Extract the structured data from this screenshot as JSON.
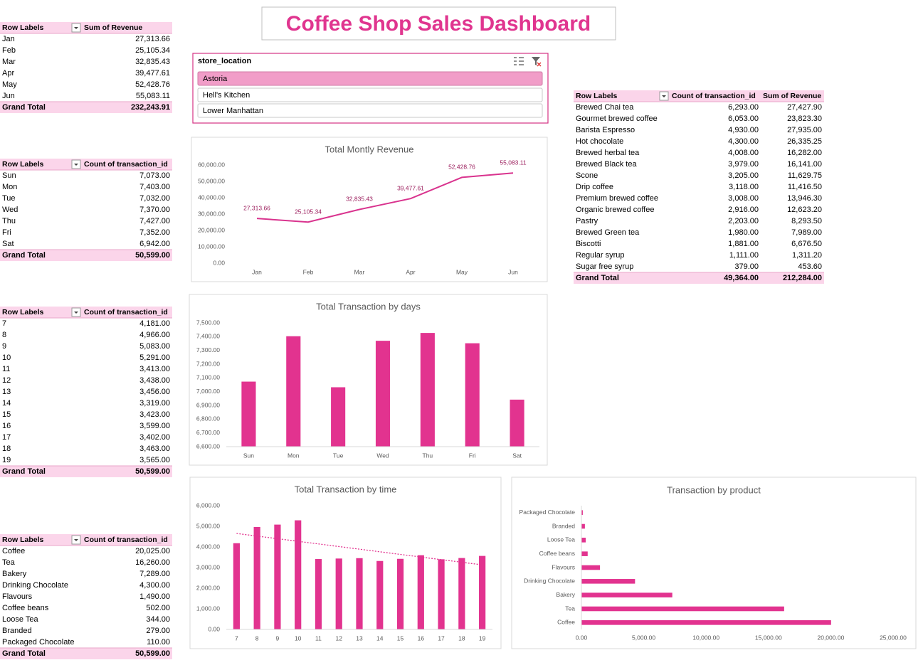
{
  "title": "Coffee Shop Sales Dashboard",
  "slicer": {
    "header": "store_location",
    "items": [
      "Astoria",
      "Hell's Kitchen",
      "Lower Manhattan"
    ],
    "selected": "Astoria"
  },
  "tables": [
    {
      "header": [
        "Row Labels",
        "Sum of Revenue"
      ],
      "rows": [
        [
          "Jan",
          "27,313.66"
        ],
        [
          "Feb",
          "25,105.34"
        ],
        [
          "Mar",
          "32,835.43"
        ],
        [
          "Apr",
          "39,477.61"
        ],
        [
          "May",
          "52,428.76"
        ],
        [
          "Jun",
          "55,083.11"
        ]
      ],
      "total": [
        "Grand Total",
        "232,243.91"
      ]
    },
    {
      "header": [
        "Row Labels",
        "Count of transaction_id"
      ],
      "rows": [
        [
          "Sun",
          "7,073.00"
        ],
        [
          "Mon",
          "7,403.00"
        ],
        [
          "Tue",
          "7,032.00"
        ],
        [
          "Wed",
          "7,370.00"
        ],
        [
          "Thu",
          "7,427.00"
        ],
        [
          "Fri",
          "7,352.00"
        ],
        [
          "Sat",
          "6,942.00"
        ]
      ],
      "total": [
        "Grand Total",
        "50,599.00"
      ]
    },
    {
      "header": [
        "Row Labels",
        "Count of transaction_id"
      ],
      "rows": [
        [
          "7",
          "4,181.00"
        ],
        [
          "8",
          "4,966.00"
        ],
        [
          "9",
          "5,083.00"
        ],
        [
          "10",
          "5,291.00"
        ],
        [
          "11",
          "3,413.00"
        ],
        [
          "12",
          "3,438.00"
        ],
        [
          "13",
          "3,456.00"
        ],
        [
          "14",
          "3,319.00"
        ],
        [
          "15",
          "3,423.00"
        ],
        [
          "16",
          "3,599.00"
        ],
        [
          "17",
          "3,402.00"
        ],
        [
          "18",
          "3,463.00"
        ],
        [
          "19",
          "3,565.00"
        ]
      ],
      "total": [
        "Grand Total",
        "50,599.00"
      ]
    },
    {
      "header": [
        "Row Labels",
        "Count of transaction_id"
      ],
      "rows": [
        [
          "Coffee",
          "20,025.00"
        ],
        [
          "Tea",
          "16,260.00"
        ],
        [
          "Bakery",
          "7,289.00"
        ],
        [
          "Drinking Chocolate",
          "4,300.00"
        ],
        [
          "Flavours",
          "1,490.00"
        ],
        [
          "Coffee beans",
          "502.00"
        ],
        [
          "Loose Tea",
          "344.00"
        ],
        [
          "Branded",
          "279.00"
        ],
        [
          "Packaged Chocolate",
          "110.00"
        ]
      ],
      "total": [
        "Grand Total",
        "50,599.00"
      ]
    },
    {
      "header": [
        "Row Labels",
        "Count of transaction_id",
        "Sum of Revenue"
      ],
      "rows": [
        [
          "Brewed Chai tea",
          "6,293.00",
          "27,427.90"
        ],
        [
          "Gourmet brewed coffee",
          "6,053.00",
          "23,823.30"
        ],
        [
          "Barista Espresso",
          "4,930.00",
          "27,935.00"
        ],
        [
          "Hot chocolate",
          "4,300.00",
          "26,335.25"
        ],
        [
          "Brewed herbal tea",
          "4,008.00",
          "16,282.00"
        ],
        [
          "Brewed Black tea",
          "3,979.00",
          "16,141.00"
        ],
        [
          "Scone",
          "3,205.00",
          "11,629.75"
        ],
        [
          "Drip coffee",
          "3,118.00",
          "11,416.50"
        ],
        [
          "Premium brewed coffee",
          "3,008.00",
          "13,946.30"
        ],
        [
          "Organic brewed coffee",
          "2,916.00",
          "12,623.20"
        ],
        [
          "Pastry",
          "2,203.00",
          "8,293.50"
        ],
        [
          "Brewed Green tea",
          "1,980.00",
          "7,989.00"
        ],
        [
          "Biscotti",
          "1,881.00",
          "6,676.50"
        ],
        [
          "Regular syrup",
          "1,111.00",
          "1,311.20"
        ],
        [
          "Sugar free syrup",
          "379.00",
          "453.60"
        ]
      ],
      "total": [
        "Grand Total",
        "49,364.00",
        "212,284.00"
      ]
    }
  ],
  "chart_data": [
    {
      "type": "line",
      "title": "Total Montly Revenue",
      "color": "#d9338e",
      "categories": [
        "Jan",
        "Feb",
        "Mar",
        "Apr",
        "May",
        "Jun"
      ],
      "values": [
        27313.66,
        25105.34,
        32835.43,
        39477.61,
        52428.76,
        55083.11
      ],
      "value_labels": [
        "27,313.66",
        "25,105.34",
        "32,835.43",
        "39,477.61",
        "52,428.76",
        "55,083.11"
      ],
      "ylim": [
        0,
        60000
      ],
      "yticks": [
        {
          "value": 0,
          "label": "0.00"
        },
        {
          "value": 10000,
          "label": "10,000.00"
        },
        {
          "value": 20000,
          "label": "20,000.00"
        },
        {
          "value": 30000,
          "label": "30,000.00"
        },
        {
          "value": 40000,
          "label": "40,000.00"
        },
        {
          "value": 50000,
          "label": "50,000.00"
        },
        {
          "value": 60000,
          "label": "60,000.00"
        }
      ],
      "grid": false
    },
    {
      "type": "bar",
      "title": "Total Transaction by days",
      "color": "#e2338f",
      "categories": [
        "Sun",
        "Mon",
        "Tue",
        "Wed",
        "Thu",
        "Fri",
        "Sat"
      ],
      "values": [
        7073,
        7403,
        7032,
        7370,
        7427,
        7352,
        6942
      ],
      "ylim": [
        6600,
        7500
      ],
      "yticks": [
        {
          "value": 6600,
          "label": "6,600.00"
        },
        {
          "value": 6700,
          "label": "6,700.00"
        },
        {
          "value": 6800,
          "label": "6,800.00"
        },
        {
          "value": 6900,
          "label": "6,900.00"
        },
        {
          "value": 7000,
          "label": "7,000.00"
        },
        {
          "value": 7100,
          "label": "7,100.00"
        },
        {
          "value": 7200,
          "label": "7,200.00"
        },
        {
          "value": 7300,
          "label": "7,300.00"
        },
        {
          "value": 7400,
          "label": "7,400.00"
        },
        {
          "value": 7500,
          "label": "7,500.00"
        }
      ],
      "grid": false
    },
    {
      "type": "bar",
      "title": "Total Transaction by time",
      "color": "#e2338f",
      "trendline": "linear",
      "categories": [
        "7",
        "8",
        "9",
        "10",
        "11",
        "12",
        "13",
        "14",
        "15",
        "16",
        "17",
        "18",
        "19"
      ],
      "values": [
        4181,
        4966,
        5083,
        5291,
        3413,
        3438,
        3456,
        3319,
        3423,
        3599,
        3402,
        3463,
        3565
      ],
      "ylim": [
        0,
        6000
      ],
      "yticks": [
        {
          "value": 0,
          "label": "0.00"
        },
        {
          "value": 1000,
          "label": "1,000.00"
        },
        {
          "value": 2000,
          "label": "2,000.00"
        },
        {
          "value": 3000,
          "label": "3,000.00"
        },
        {
          "value": 4000,
          "label": "4,000.00"
        },
        {
          "value": 5000,
          "label": "5,000.00"
        },
        {
          "value": 6000,
          "label": "6,000.00"
        }
      ],
      "grid": false
    },
    {
      "type": "hbar",
      "title": "Transaction by product",
      "color": "#e2338f",
      "categories": [
        "Coffee",
        "Tea",
        "Bakery",
        "Drinking Chocolate",
        "Flavours",
        "Coffee beans",
        "Loose Tea",
        "Branded",
        "Packaged Chocolate"
      ],
      "values": [
        20025,
        16260,
        7289,
        4300,
        1490,
        502,
        344,
        279,
        110
      ],
      "xlim": [
        0,
        25000
      ],
      "xticks": [
        {
          "value": 0,
          "label": "0.00"
        },
        {
          "value": 5000,
          "label": "5,000.00"
        },
        {
          "value": 10000,
          "label": "10,000.00"
        },
        {
          "value": 15000,
          "label": "15,000.00"
        },
        {
          "value": 20000,
          "label": "20,000.00"
        },
        {
          "value": 25000,
          "label": "25,000.00"
        }
      ],
      "grid": false
    }
  ]
}
